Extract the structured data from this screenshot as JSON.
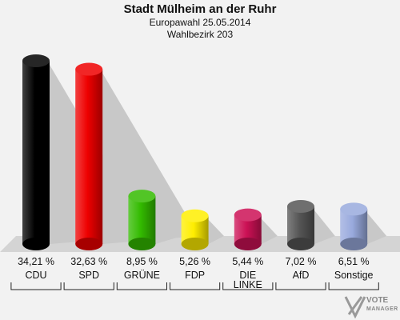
{
  "header": {
    "title": "Stadt Mülheim an der Ruhr",
    "subtitle": "Europawahl 25.05.2014",
    "district": "Wahlbezirk 203"
  },
  "chart_data": {
    "type": "bar",
    "categories": [
      "CDU",
      "SPD",
      "GRÜNE",
      "FDP",
      "DIE LINKE",
      "AfD",
      "Sonstige"
    ],
    "values": [
      34.21,
      32.63,
      8.95,
      5.26,
      5.44,
      7.02,
      6.51
    ],
    "value_labels": [
      "34,21 %",
      "32,63 %",
      "8,95 %",
      "5,26 %",
      "5,44 %",
      "7,02 %",
      "6,51 %"
    ],
    "colors": [
      "#000000",
      "#ee0000",
      "#33bb00",
      "#ffee00",
      "#cc1155",
      "#555555",
      "#99aadd"
    ],
    "ylim": [
      0,
      36
    ]
  },
  "logo": {
    "line1": "VOTE",
    "line2": "MANAGER"
  }
}
